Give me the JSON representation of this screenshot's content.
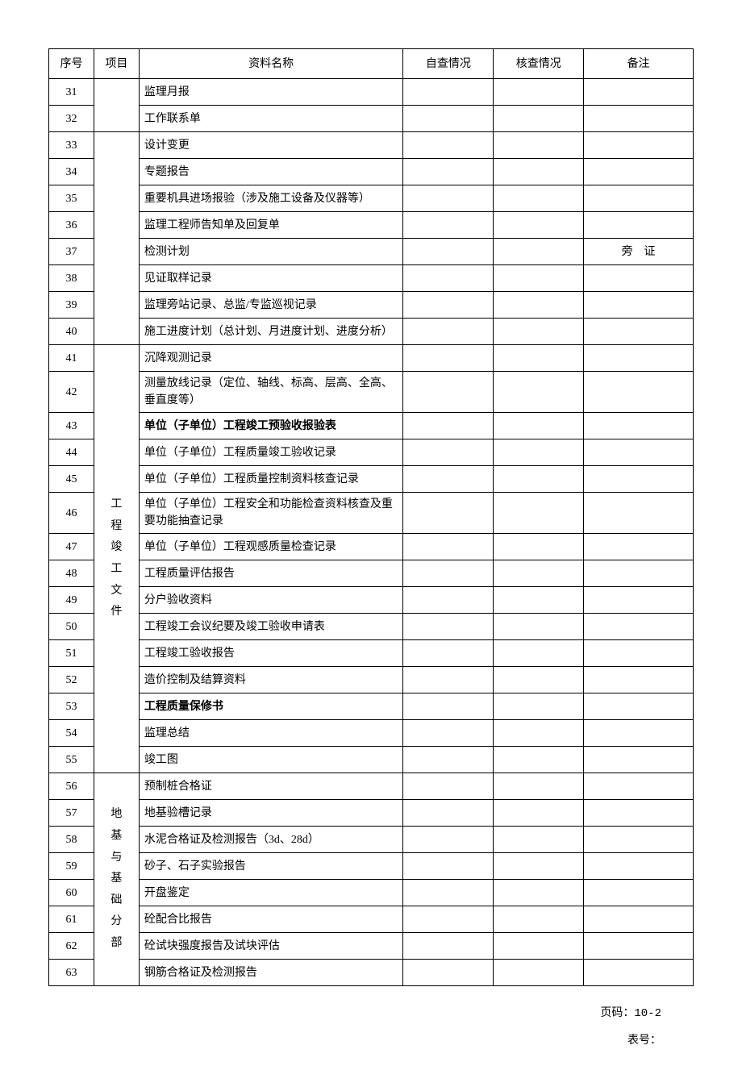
{
  "columns": {
    "seq": "序号",
    "project": "项目",
    "name": "资料名称",
    "self": "自查情况",
    "check": "核查情况",
    "remark": "备注"
  },
  "colWidths": {
    "seq": "7%",
    "project": "7%",
    "name": "41%",
    "self": "14%",
    "check": "14%",
    "remark": "17%"
  },
  "groups": [
    {
      "label": "",
      "span": 2
    },
    {
      "label": "",
      "span": 8
    },
    {
      "label": "工\n程\n竣\n工\n文\n件",
      "span": 15
    },
    {
      "label": "地\n基\n与\n基\n础\n分\n部",
      "span": 8
    }
  ],
  "rows": [
    {
      "seq": "31",
      "name": "监理月报",
      "remark": "",
      "bold": false
    },
    {
      "seq": "32",
      "name": "工作联系单",
      "remark": "",
      "bold": false
    },
    {
      "seq": "33",
      "name": "设计变更",
      "remark": "",
      "bold": false
    },
    {
      "seq": "34",
      "name": "专题报告",
      "remark": "",
      "bold": false
    },
    {
      "seq": "35",
      "name": "重要机具进场报验（涉及施工设备及仪器等）",
      "remark": "",
      "bold": false
    },
    {
      "seq": "36",
      "name": "监理工程师告知单及回复单",
      "remark": "",
      "bold": false
    },
    {
      "seq": "37",
      "name": "检测计划",
      "remark": "旁　证",
      "bold": false
    },
    {
      "seq": "38",
      "name": "见证取样记录",
      "remark": "",
      "bold": false
    },
    {
      "seq": "39",
      "name": "监理旁站记录、总监/专监巡视记录",
      "remark": "",
      "bold": false
    },
    {
      "seq": "40",
      "name": "施工进度计划（总计划、月进度计划、进度分析）",
      "remark": "",
      "bold": false
    },
    {
      "seq": "41",
      "name": "沉降观测记录",
      "remark": "",
      "bold": false
    },
    {
      "seq": "42",
      "name": "测量放线记录（定位、轴线、标高、层高、全高、垂直度等）",
      "remark": "",
      "bold": false
    },
    {
      "seq": "43",
      "name": "单位（子单位）工程竣工预验收报验表",
      "remark": "",
      "bold": true
    },
    {
      "seq": "44",
      "name": "单位（子单位）工程质量竣工验收记录",
      "remark": "",
      "bold": false
    },
    {
      "seq": "45",
      "name": "单位（子单位）工程质量控制资料核查记录",
      "remark": "",
      "bold": false
    },
    {
      "seq": "46",
      "name": "单位（子单位）工程安全和功能检查资料核查及重要功能抽查记录",
      "remark": "",
      "bold": false
    },
    {
      "seq": "47",
      "name": "单位（子单位）工程观感质量检查记录",
      "remark": "",
      "bold": false
    },
    {
      "seq": "48",
      "name": "工程质量评估报告",
      "remark": "",
      "bold": false
    },
    {
      "seq": "49",
      "name": "分户验收资料",
      "remark": "",
      "bold": false
    },
    {
      "seq": "50",
      "name": "工程竣工会议纪要及竣工验收申请表",
      "remark": "",
      "bold": false
    },
    {
      "seq": "51",
      "name": "工程竣工验收报告",
      "remark": "",
      "bold": false
    },
    {
      "seq": "52",
      "name": "造价控制及结算资料",
      "remark": "",
      "bold": false
    },
    {
      "seq": "53",
      "name": "工程质量保修书",
      "remark": "",
      "bold": true
    },
    {
      "seq": "54",
      "name": "监理总结",
      "remark": "",
      "bold": false
    },
    {
      "seq": "55",
      "name": "竣工图",
      "remark": "",
      "bold": false
    },
    {
      "seq": "56",
      "name": "预制桩合格证",
      "remark": "",
      "bold": false
    },
    {
      "seq": "57",
      "name": "地基验槽记录",
      "remark": "",
      "bold": false
    },
    {
      "seq": "58",
      "name": "水泥合格证及检测报告（3d、28d）",
      "remark": "",
      "bold": false
    },
    {
      "seq": "59",
      "name": "砂子、石子实验报告",
      "remark": "",
      "bold": false
    },
    {
      "seq": "60",
      "name": "开盘鉴定",
      "remark": "",
      "bold": false
    },
    {
      "seq": "61",
      "name": "砼配合比报告",
      "remark": "",
      "bold": false
    },
    {
      "seq": "62",
      "name": "砼试块强度报告及试块评估",
      "remark": "",
      "bold": false
    },
    {
      "seq": "63",
      "name": "钢筋合格证及检测报告",
      "remark": "",
      "bold": false
    }
  ],
  "footer": {
    "page": "页码：10-2",
    "form": "表号："
  }
}
